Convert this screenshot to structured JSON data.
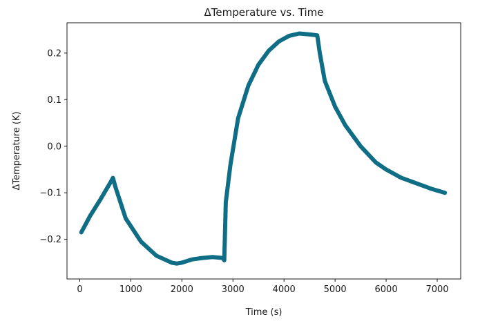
{
  "chart_data": {
    "type": "line",
    "title": "ΔTemperature vs. Time",
    "xlabel": "Time (s)",
    "ylabel": "ΔTemperature (K)",
    "xlim": [
      -250,
      7460
    ],
    "ylim": [
      -0.285,
      0.265
    ],
    "x_ticks": [
      0,
      1000,
      2000,
      3000,
      4000,
      5000,
      6000,
      7000
    ],
    "x_tick_labels": [
      "0",
      "1000",
      "2000",
      "3000",
      "4000",
      "5000",
      "6000",
      "7000"
    ],
    "y_ticks": [
      -0.2,
      -0.1,
      0.0,
      0.1,
      0.2
    ],
    "y_tick_labels": [
      "−0.2",
      "−0.1",
      "0.0",
      "0.1",
      "0.2"
    ],
    "grid": false,
    "legend": "none",
    "series": [
      {
        "color": "#0f6e86",
        "x": [
          30,
          200,
          400,
          600,
          650,
          700,
          900,
          1200,
          1500,
          1800,
          1900,
          2000,
          2200,
          2400,
          2600,
          2800,
          2830,
          2860,
          2950,
          3100,
          3300,
          3500,
          3700,
          3900,
          4100,
          4300,
          4500,
          4650,
          4700,
          4800,
          5000,
          5200,
          5500,
          5800,
          6000,
          6300,
          6600,
          6900,
          7150
        ],
        "y": [
          -0.185,
          -0.15,
          -0.115,
          -0.078,
          -0.068,
          -0.088,
          -0.155,
          -0.205,
          -0.235,
          -0.25,
          -0.252,
          -0.25,
          -0.243,
          -0.24,
          -0.238,
          -0.24,
          -0.245,
          -0.12,
          -0.04,
          0.06,
          0.13,
          0.175,
          0.205,
          0.225,
          0.237,
          0.242,
          0.24,
          0.238,
          0.2,
          0.14,
          0.085,
          0.045,
          0.0,
          -0.035,
          -0.05,
          -0.068,
          -0.08,
          -0.092,
          -0.1
        ]
      }
    ]
  }
}
